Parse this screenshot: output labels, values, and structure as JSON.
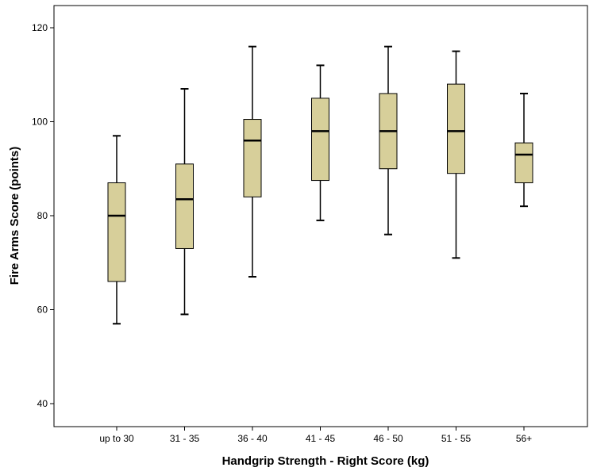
{
  "chart_data": {
    "type": "boxplot",
    "title": "",
    "xlabel": "Handgrip Strength - Right Score (kg)",
    "ylabel": "Fire Arms Score (points)",
    "ylim": [
      37,
      122
    ],
    "yticks": [
      40,
      60,
      80,
      100,
      120
    ],
    "grid": false,
    "box_color": "#d7cf9a",
    "categories": [
      "up to 30",
      "31 - 35",
      "36 - 40",
      "41 - 45",
      "46 - 50",
      "51 - 55",
      "56+"
    ],
    "boxes": [
      {
        "category": "up to 30",
        "min": 57,
        "q1": 66,
        "median": 80,
        "q3": 87,
        "max": 97
      },
      {
        "category": "31 - 35",
        "min": 59,
        "q1": 73,
        "median": 83.5,
        "q3": 91,
        "max": 107
      },
      {
        "category": "36 - 40",
        "min": 67,
        "q1": 84,
        "median": 96,
        "q3": 100.5,
        "max": 116
      },
      {
        "category": "41 - 45",
        "min": 79,
        "q1": 87.5,
        "median": 98,
        "q3": 105,
        "max": 112
      },
      {
        "category": "46 - 50",
        "min": 76,
        "q1": 90,
        "median": 98,
        "q3": 106,
        "max": 116
      },
      {
        "category": "51 - 55",
        "min": 71,
        "q1": 89,
        "median": 98,
        "q3": 108,
        "max": 115
      },
      {
        "category": "56+",
        "min": 82,
        "q1": 87,
        "median": 93,
        "q3": 95.5,
        "max": 106
      }
    ]
  }
}
